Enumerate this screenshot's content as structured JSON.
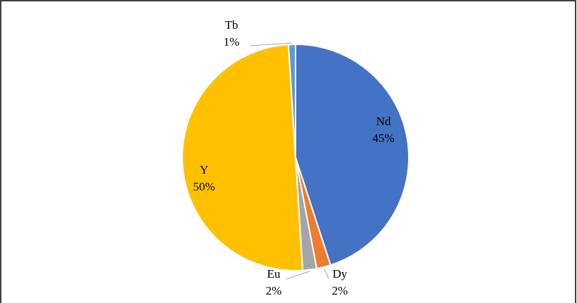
{
  "chart_data": {
    "type": "pie",
    "categories": [
      "Nd",
      "Dy",
      "Eu",
      "Y",
      "Tb"
    ],
    "values": [
      45,
      2,
      2,
      50,
      1
    ],
    "value_labels": [
      "45%",
      "2%",
      "2%",
      "50%",
      "1%"
    ],
    "colors": [
      "#4472c4",
      "#ed7d31",
      "#a5a5a5",
      "#ffc000",
      "#5b9bd5"
    ]
  }
}
